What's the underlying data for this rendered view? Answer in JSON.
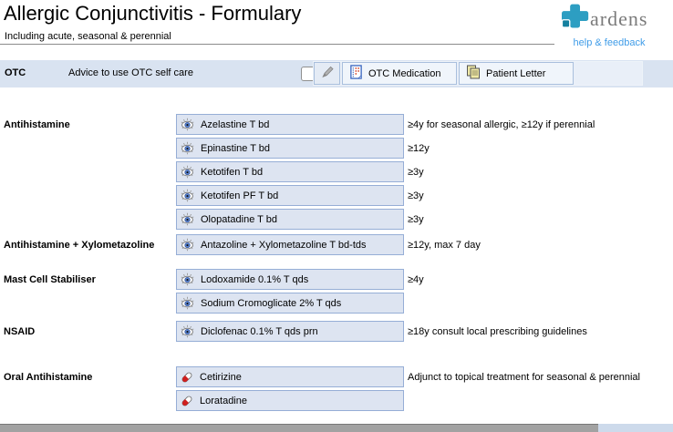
{
  "header": {
    "title": "Allergic Conjunctivitis - Formulary",
    "subtitle": "Including acute, seasonal & perennial"
  },
  "brand": {
    "name": "ardens",
    "link_label": "help & feedback",
    "cross_color": "#2d9ec2",
    "cross_dark_color": "#15809f",
    "link_color": "#3f9ce8"
  },
  "otc": {
    "label": "OTC",
    "text": "Advice to use OTC self care",
    "checkbox_checked": false,
    "buttons": [
      {
        "icon": "medication-pad-icon",
        "label": "OTC Medication"
      },
      {
        "icon": "patient-letter-icon",
        "label": "Patient Letter"
      }
    ]
  },
  "sections": [
    {
      "label": "Antihistamine",
      "rows": [
        {
          "icon": "eye",
          "label": "Azelastine T bd",
          "note": "≥4y for seasonal allergic, ≥12y if perennial"
        },
        {
          "icon": "eye",
          "label": "Epinastine T bd",
          "note": "≥12y"
        },
        {
          "icon": "eye",
          "label": "Ketotifen T bd",
          "note": "≥3y"
        },
        {
          "icon": "eye",
          "label": "Ketotifen PF T bd",
          "note": "≥3y"
        },
        {
          "icon": "eye",
          "label": "Olopatadine T bd",
          "note": "≥3y"
        }
      ]
    },
    {
      "label": "Antihistamine + Xylometazoline",
      "rows": [
        {
          "icon": "eye",
          "label": "Antazoline + Xylometazoline T bd-tds",
          "note": "≥12y, max 7 day"
        }
      ]
    },
    {
      "label": "Mast Cell Stabiliser",
      "rows": [
        {
          "icon": "eye",
          "label": "Lodoxamide 0.1% T qds",
          "note": "≥4y"
        },
        {
          "icon": "eye",
          "label": "Sodium Cromoglicate 2% T qds",
          "note": ""
        }
      ]
    },
    {
      "label": "NSAID",
      "rows": [
        {
          "icon": "eye",
          "label": "Diclofenac 0.1% T qds prn",
          "note": "≥18y consult local prescribing guidelines"
        }
      ]
    },
    {
      "label": "Oral Antihistamine",
      "rows": [
        {
          "icon": "capsule",
          "label": "Cetirizine",
          "note": "Adjunct to topical treatment for seasonal & perennial"
        },
        {
          "icon": "capsule",
          "label": "Loratadine",
          "note": ""
        }
      ]
    }
  ],
  "colors": {
    "row_background": "#d9e3f1",
    "button_background": "#dde4f1",
    "button_border": "#96aed6",
    "strip_button_background": "#f0f5fb"
  }
}
